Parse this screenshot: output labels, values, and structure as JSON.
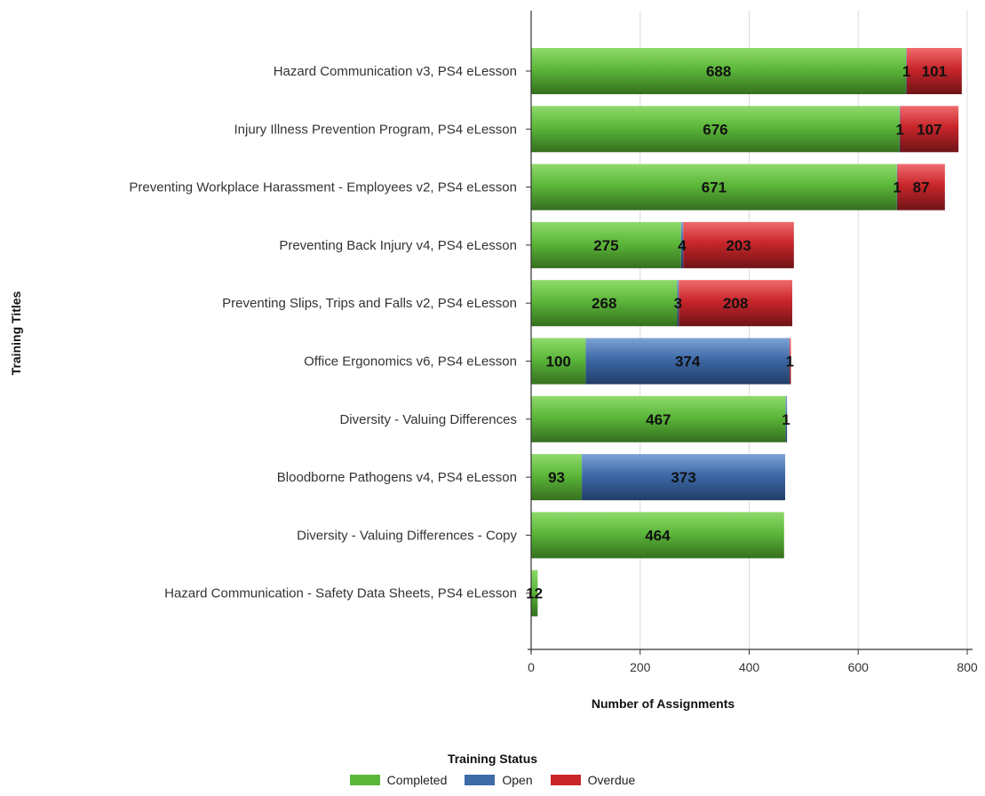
{
  "chart_data": {
    "type": "bar",
    "orientation": "horizontal",
    "stacked": true,
    "categories": [
      "Hazard Communication v3, PS4 eLesson",
      "Injury Illness Prevention Program, PS4 eLesson",
      "Preventing Workplace Harassment - Employees v2, PS4 eLesson",
      "Preventing Back Injury v4, PS4 eLesson",
      "Preventing Slips, Trips and Falls v2, PS4 eLesson",
      "Office Ergonomics v6, PS4 eLesson",
      "Diversity - Valuing Differences",
      "Bloodborne Pathogens v4, PS4 eLesson",
      "Diversity - Valuing Differences - Copy",
      "Hazard Communication - Safety Data Sheets, PS4 eLesson"
    ],
    "series": [
      {
        "name": "Completed",
        "color": "#5cb83a",
        "values": [
          688,
          676,
          671,
          275,
          268,
          100,
          467,
          93,
          464,
          12
        ]
      },
      {
        "name": "Open",
        "color": "#3e6aa8",
        "values": [
          1,
          1,
          1,
          4,
          3,
          374,
          1,
          373,
          0,
          0
        ]
      },
      {
        "name": "Overdue",
        "color": "#c9262b",
        "values": [
          101,
          107,
          87,
          203,
          208,
          1,
          0,
          0,
          0,
          0
        ]
      }
    ],
    "xlabel": "Number of Assignments",
    "ylabel": "Training Titles",
    "xlim": [
      0,
      800
    ],
    "xticks": [
      0,
      200,
      400,
      600,
      800
    ],
    "grid": true,
    "legend_title": "Training Status",
    "legend_position": "bottom"
  }
}
